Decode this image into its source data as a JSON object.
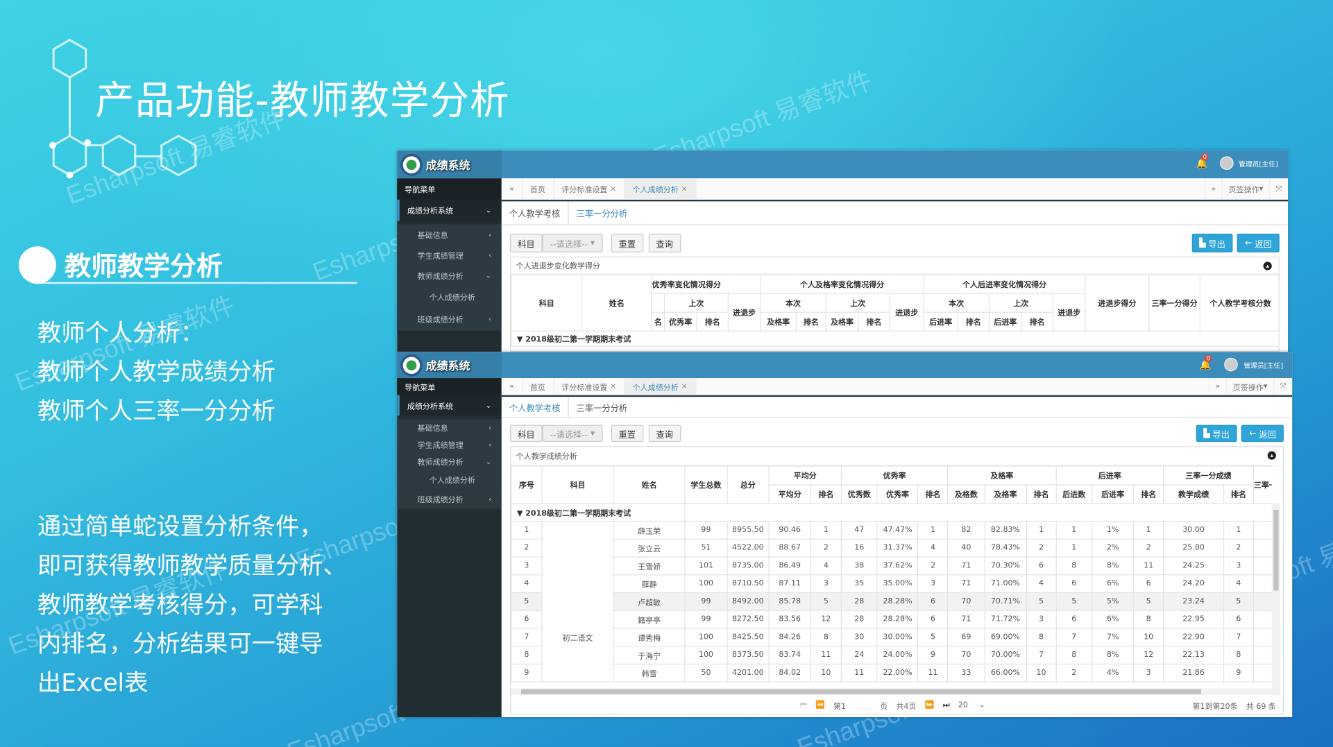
{
  "slide": {
    "title": "产品功能-教师教学分析",
    "section_title": "教师教学分析",
    "lines_a": [
      "教师个人分析：",
      "教师个人教学成绩分析",
      "教师个人三率一分分析"
    ],
    "lines_b": [
      "通过简单蛇设置分析条件，",
      "即可获得教师教学质量分析、",
      "教师教学考核得分，可学科",
      "内排名，分析结果可一键导",
      "出Excel表"
    ],
    "watermark": "Esharpsoft 易睿软件",
    "colors": {
      "bg_top": "#3fd2e4",
      "bg_bottom": "#1b6fc4",
      "app_header": "#3c8dbc",
      "sidebar": "#222d32",
      "button": "#2fa4d9"
    }
  },
  "app": {
    "name": "成绩系统",
    "notification_count": "0",
    "user": "管理员[主任]",
    "sidebar": {
      "header": "导航菜单",
      "items": [
        "成绩分析系统",
        "基础信息",
        "学生成绩管理",
        "教师成绩分析",
        "个人成绩分析",
        "班级成绩分析"
      ]
    },
    "tabs": [
      "首页",
      "评分标准设置",
      "个人成绩分析"
    ],
    "tab_ops": "页签操作",
    "subtabs": [
      "个人教学考核",
      "三率一分分析"
    ],
    "toolbar": {
      "subject_label": "科目",
      "select_placeholder": "--请选择--",
      "reset": "重置",
      "query": "查询",
      "export": "导出",
      "back": "返回"
    }
  },
  "screen1": {
    "panel_title": "个人进退步变化教学得分",
    "headers": {
      "subject": "科目",
      "name": "姓名",
      "g_excellent": "优秀率变化情况得分",
      "g_pass": "个人及格率变化情况得分",
      "g_behind": "个人后进率变化情况得分",
      "current": "本次",
      "previous": "上次",
      "progress": "进退步",
      "rank": "排名",
      "excellent_rate": "优秀率",
      "pass_rate": "及格率",
      "behind_rate": "后进率",
      "progress_score": "进退步得分",
      "three_one_score": "三率一分得分",
      "assessment_score": "个人教学考核分数",
      "cut_rank": "名"
    },
    "group_row": "2018级初二第一学期期末考试"
  },
  "screen2": {
    "panel_title": "个人教学成绩分析",
    "headers": {
      "no": "序号",
      "subject": "科目",
      "name": "姓名",
      "students": "学生总数",
      "total": "总分",
      "avg_group": "平均分",
      "avg": "平均分",
      "rank": "排名",
      "excellent_group": "优秀率",
      "excellent_count": "优秀数",
      "excellent_rate": "优秀率",
      "pass_group": "及格率",
      "pass_count": "及格数",
      "pass_rate": "及格率",
      "behind_group": "后进率",
      "behind_count": "后进数",
      "behind_rate": "后进率",
      "tro_group": "三率一分成绩",
      "teaching_score": "教学成绩",
      "tro_cut": "三率一分"
    },
    "group_row": "2018级初二第一学期期末考试",
    "subject_value": "初二语文",
    "rows": [
      [
        "1",
        "薛玉荣",
        "99",
        "8955.50",
        "90.46",
        "1",
        "47",
        "47.47%",
        "1",
        "82",
        "82.83%",
        "1",
        "1",
        "1%",
        "1",
        "30.00",
        "1"
      ],
      [
        "2",
        "张立云",
        "51",
        "4522.00",
        "88.67",
        "2",
        "16",
        "31.37%",
        "4",
        "40",
        "78.43%",
        "2",
        "1",
        "2%",
        "2",
        "25.80",
        "2"
      ],
      [
        "3",
        "王雪娇",
        "101",
        "8735.00",
        "86.49",
        "4",
        "38",
        "37.62%",
        "2",
        "71",
        "70.30%",
        "6",
        "8",
        "8%",
        "11",
        "24.25",
        "3"
      ],
      [
        "4",
        "薛静",
        "100",
        "8710.50",
        "87.11",
        "3",
        "35",
        "35.00%",
        "3",
        "71",
        "71.00%",
        "4",
        "6",
        "6%",
        "6",
        "24.20",
        "4"
      ],
      [
        "5",
        "卢超敏",
        "99",
        "8492.00",
        "85.78",
        "5",
        "28",
        "28.28%",
        "6",
        "70",
        "70.71%",
        "5",
        "5",
        "5%",
        "5",
        "23.24",
        "5"
      ],
      [
        "6",
        "籍亭亭",
        "99",
        "8272.50",
        "83.56",
        "12",
        "28",
        "28.28%",
        "6",
        "71",
        "71.72%",
        "3",
        "6",
        "6%",
        "8",
        "22.95",
        "6"
      ],
      [
        "7",
        "谭秀梅",
        "100",
        "8425.50",
        "84.26",
        "8",
        "30",
        "30.00%",
        "5",
        "69",
        "69.00%",
        "8",
        "7",
        "7%",
        "10",
        "22.90",
        "7"
      ],
      [
        "8",
        "于海宁",
        "100",
        "8373.50",
        "83.74",
        "11",
        "24",
        "24.00%",
        "9",
        "70",
        "70.00%",
        "7",
        "8",
        "8%",
        "12",
        "22.13",
        "8"
      ],
      [
        "9",
        "韩雪",
        "50",
        "4201.00",
        "84.02",
        "10",
        "11",
        "22.00%",
        "11",
        "33",
        "66.00%",
        "10",
        "2",
        "4%",
        "3",
        "21.86",
        "9"
      ]
    ],
    "highlight_row": 5,
    "pager": {
      "page_prefix": "第1",
      "page_suffix": "页",
      "total_pages": "共4页",
      "page_size": "20",
      "range": "第1到第20条",
      "total": "共 69 条"
    }
  }
}
